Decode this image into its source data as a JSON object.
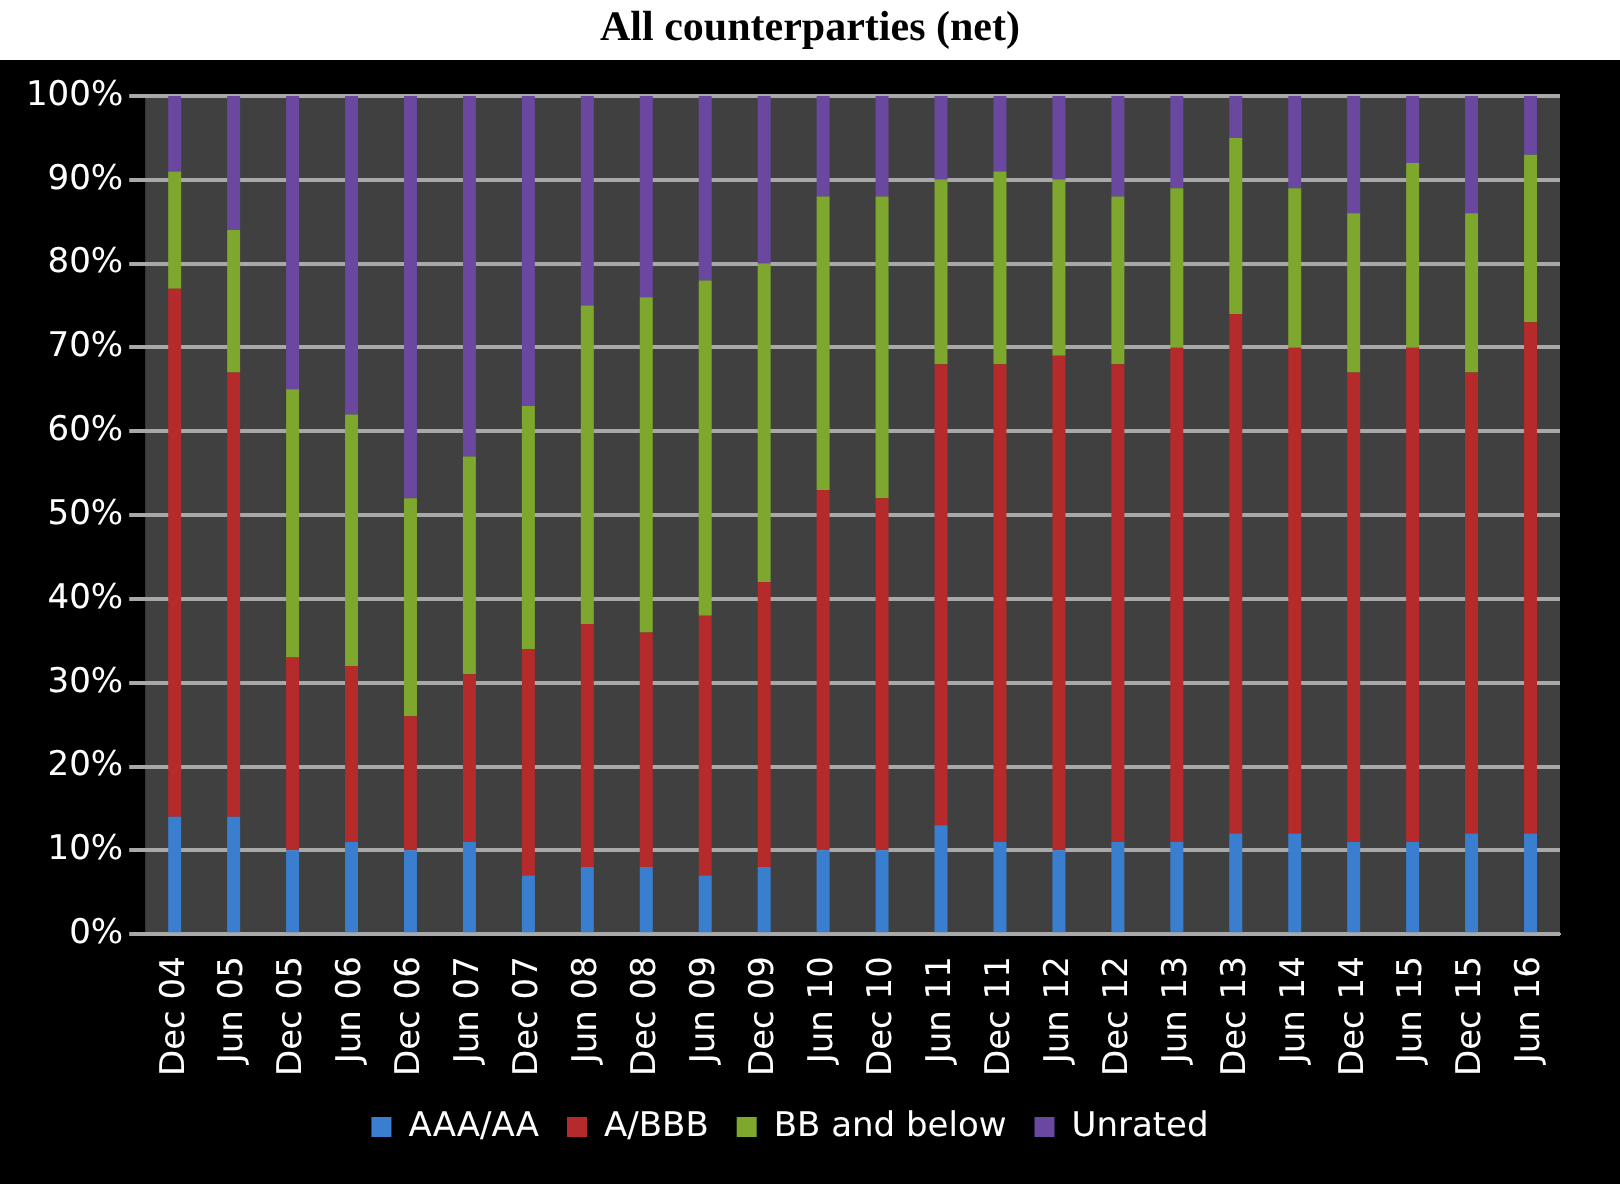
{
  "chart_data": {
    "type": "bar",
    "title": "All counterparties (net)",
    "stacked": true,
    "grid": "y",
    "legend": "bottom",
    "categories": [
      "Dec 04",
      "Jun 05",
      "Dec 05",
      "Jun 06",
      "Dec 06",
      "Jun 07",
      "Dec 07",
      "Jun 08",
      "Dec 08",
      "Jun 09",
      "Dec 09",
      "Jun 10",
      "Dec 10",
      "Jun 11",
      "Dec 11",
      "Jun 12",
      "Dec 12",
      "Jun 13",
      "Dec 13",
      "Jun 14",
      "Dec 14",
      "Jun 15",
      "Dec 15",
      "Jun 16"
    ],
    "ylim": [
      0,
      100
    ],
    "yticks": [
      {
        "value": 0,
        "label": "0%"
      },
      {
        "value": 10,
        "label": "10%"
      },
      {
        "value": 20,
        "label": "20%"
      },
      {
        "value": 30,
        "label": "30%"
      },
      {
        "value": 40,
        "label": "40%"
      },
      {
        "value": 50,
        "label": "50%"
      },
      {
        "value": 60,
        "label": "60%"
      },
      {
        "value": 70,
        "label": "70%"
      },
      {
        "value": 80,
        "label": "80%"
      },
      {
        "value": 90,
        "label": "90%"
      },
      {
        "value": 100,
        "label": "100%"
      }
    ],
    "series": [
      {
        "name": "AAA/AA",
        "color": "#3a7fcf",
        "values": [
          14,
          14,
          10,
          11,
          10,
          11,
          7,
          8,
          8,
          7,
          8,
          10,
          10,
          13,
          11,
          10,
          11,
          11,
          12,
          12,
          11,
          11,
          12,
          12
        ]
      },
      {
        "name": "A/BBB",
        "color": "#b52a2a",
        "values": [
          63,
          53,
          23,
          21,
          16,
          20,
          27,
          29,
          28,
          31,
          34,
          43,
          42,
          55,
          57,
          59,
          57,
          59,
          62,
          58,
          56,
          59,
          55,
          61
        ]
      },
      {
        "name": "BB and below",
        "color": "#7ea72e",
        "values": [
          14,
          17,
          32,
          30,
          26,
          26,
          29,
          38,
          40,
          40,
          38,
          35,
          36,
          22,
          23,
          21,
          20,
          19,
          21,
          19,
          19,
          22,
          19,
          20
        ]
      },
      {
        "name": "Unrated",
        "color": "#6a48a0",
        "values": [
          9,
          16,
          35,
          38,
          48,
          43,
          37,
          25,
          24,
          22,
          20,
          12,
          12,
          10,
          9,
          10,
          12,
          11,
          5,
          11,
          14,
          8,
          14,
          7
        ]
      }
    ]
  }
}
